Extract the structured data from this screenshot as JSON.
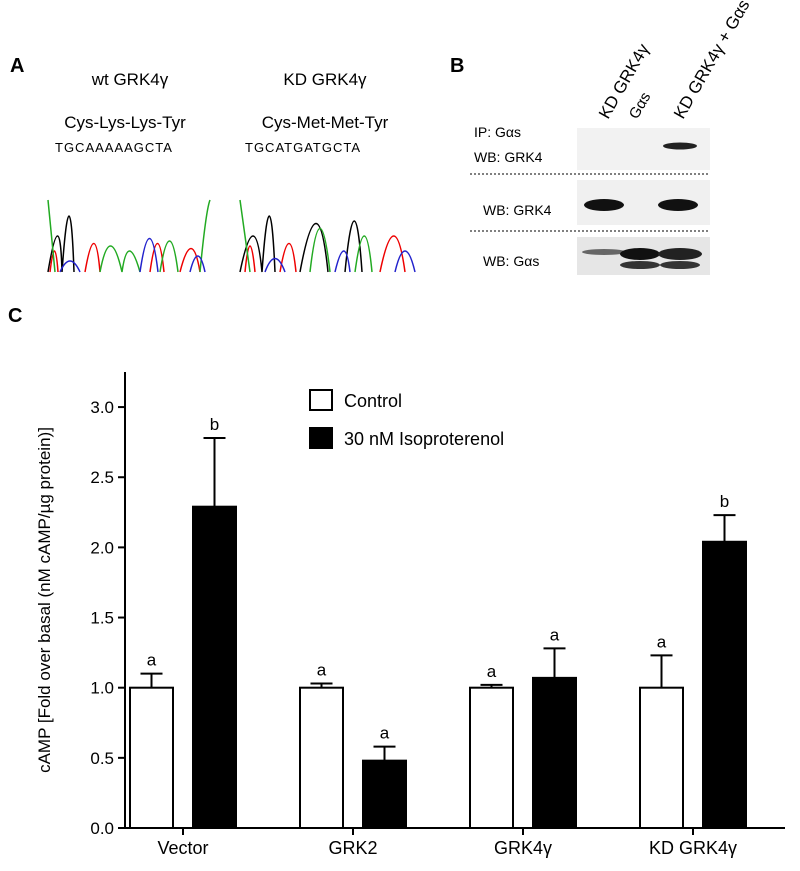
{
  "panel_a": {
    "label": "A",
    "wt": {
      "name": "wt GRK4γ",
      "protein": "Cys-Lys-Lys-Tyr",
      "sequence": "TGCAAAAAGCTA"
    },
    "kd": {
      "name": "KD GRK4γ",
      "protein": "Cys-Met-Met-Tyr",
      "sequence": "TGCATGATGCTA"
    }
  },
  "panel_b": {
    "label": "B",
    "lanes": [
      "KD GRK4γ",
      "Gαs",
      "KD GRK4γ + Gαs"
    ],
    "rows": [
      "IP: Gαs",
      "WB: GRK4",
      "WB: GRK4",
      "WB: Gαs"
    ]
  },
  "panel_c": {
    "label": "C"
  },
  "chart_data": {
    "type": "bar",
    "y_label": "cAMP [Fold over basal (nM cAMP/µg protein)]",
    "categories": [
      "Vector",
      "GRK2",
      "GRK4γ",
      "KD GRK4γ"
    ],
    "series": [
      {
        "name": "Control",
        "color": "#ffffff",
        "values": [
          1.0,
          1.0,
          1.0,
          1.0
        ],
        "errors": [
          0.1,
          0.03,
          0.02,
          0.23
        ],
        "labels": [
          "a",
          "a",
          "a",
          "a"
        ]
      },
      {
        "name": "30 nM Isoproterenol",
        "color": "#000000",
        "values": [
          2.29,
          0.48,
          1.07,
          2.04
        ],
        "errors": [
          0.49,
          0.1,
          0.21,
          0.19
        ],
        "labels": [
          "b",
          "a",
          "a",
          "b"
        ]
      }
    ],
    "ylim": [
      0,
      3.25
    ],
    "yticks": [
      {
        "value": 0,
        "label": "0.0"
      },
      0.5,
      {
        "value": 1,
        "label": "1.0"
      },
      1.5,
      {
        "value": 2,
        "label": "2.0"
      },
      2.5,
      {
        "value": 3,
        "label": "3.0"
      }
    ],
    "legend": "upper center",
    "grid": false
  }
}
